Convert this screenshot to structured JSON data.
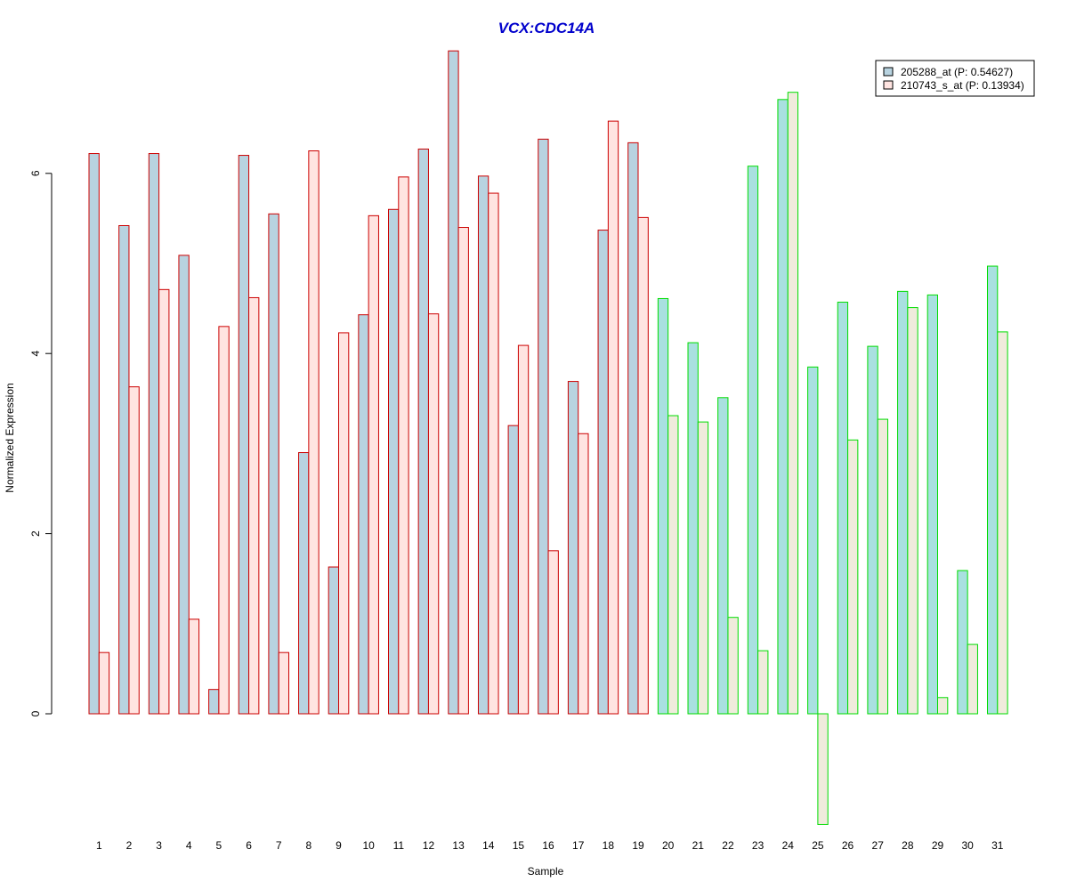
{
  "chart_data": {
    "type": "bar",
    "title": "VCX:CDC14A",
    "xlabel": "Sample",
    "ylabel": "Normalized Expression",
    "categories": [
      "1",
      "2",
      "3",
      "4",
      "5",
      "6",
      "7",
      "8",
      "9",
      "10",
      "11",
      "12",
      "13",
      "14",
      "15",
      "16",
      "17",
      "18",
      "19",
      "20",
      "21",
      "22",
      "23",
      "24",
      "25",
      "26",
      "27",
      "28",
      "29",
      "30",
      "31"
    ],
    "ylim": [
      -1.3,
      7.4
    ],
    "yticks": [
      "0",
      "2",
      "4",
      "6"
    ],
    "series": [
      {
        "name": "205288_at (P: 0.54627)",
        "values": [
          6.22,
          5.42,
          6.22,
          5.09,
          0.27,
          6.2,
          5.55,
          2.9,
          1.63,
          4.43,
          5.6,
          6.27,
          7.36,
          5.97,
          3.2,
          6.38,
          3.69,
          5.37,
          6.34,
          4.61,
          4.12,
          3.51,
          6.08,
          6.82,
          3.85,
          4.57,
          4.08,
          4.69,
          4.65,
          1.59,
          4.97
        ]
      },
      {
        "name": "210743_s_at (P: 0.13934)",
        "values": [
          0.68,
          3.63,
          4.71,
          1.05,
          4.3,
          4.62,
          0.68,
          6.25,
          4.23,
          5.53,
          5.96,
          4.44,
          5.4,
          5.78,
          4.09,
          1.81,
          3.11,
          6.58,
          5.51,
          3.31,
          3.24,
          1.07,
          0.7,
          6.9,
          -1.23,
          3.04,
          3.27,
          4.51,
          0.18,
          0.77,
          4.24
        ]
      }
    ],
    "groups": {
      "group_a_samples": 19,
      "group_a_border": "#cc0000",
      "group_b_border": "#00dd00"
    },
    "colors": {
      "title": "#0000cc",
      "series1_fill_group_a": "#b8d3e0",
      "series2_fill_group_a": "#ffe4e1",
      "series1_fill_group_b": "#a9e0e0",
      "series2_fill_group_b": "#f0ebdc"
    },
    "legend": {
      "position": "top-right"
    },
    "grid": false
  }
}
